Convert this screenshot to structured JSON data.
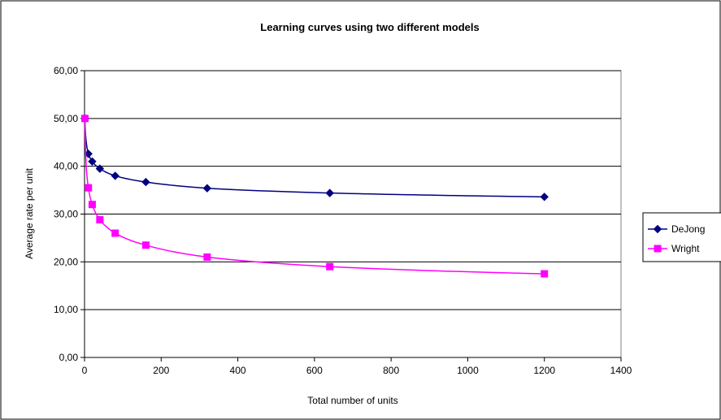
{
  "chart_data": {
    "type": "line",
    "title": "Learning curves using two different models",
    "xlabel": "Total number of units",
    "ylabel": "Average rate per unit",
    "xlim": [
      0,
      1400
    ],
    "ylim": [
      0,
      60
    ],
    "x_ticks": [
      "0",
      "200",
      "400",
      "600",
      "800",
      "1000",
      "1200",
      "1400"
    ],
    "y_ticks": [
      "0,00",
      "10,00",
      "20,00",
      "30,00",
      "40,00",
      "50,00",
      "60,00"
    ],
    "grid": "horizontal",
    "legend_position": "right",
    "series": [
      {
        "name": "DeJong",
        "color": "#000080",
        "marker": "diamond",
        "x": [
          1,
          10,
          20,
          40,
          80,
          160,
          320,
          640,
          1200
        ],
        "y": [
          50.0,
          42.6,
          41.0,
          39.5,
          38.0,
          36.7,
          35.4,
          34.4,
          33.6
        ]
      },
      {
        "name": "Wright",
        "color": "#ff00ff",
        "marker": "square",
        "x": [
          1,
          10,
          20,
          40,
          80,
          160,
          320,
          640,
          1200
        ],
        "y": [
          50.0,
          35.5,
          32.0,
          28.8,
          26.0,
          23.5,
          21.0,
          19.0,
          17.5
        ]
      }
    ]
  }
}
